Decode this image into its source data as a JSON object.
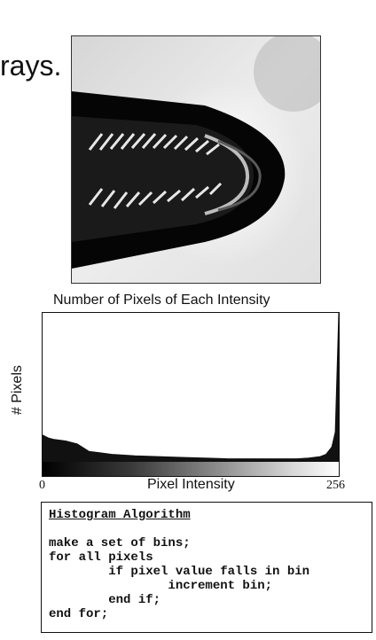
{
  "slide": {
    "title_fragment": "rays."
  },
  "chart_data": {
    "type": "area",
    "title": "Number of Pixels of Each Intensity",
    "xlabel": "Pixel Intensity",
    "ylabel": "# Pixels",
    "x_tick_labels": [
      "0",
      "256"
    ],
    "xlim": [
      0,
      256
    ],
    "ylim": [
      0,
      100
    ],
    "x": [
      0,
      5,
      10,
      20,
      30,
      40,
      50,
      60,
      80,
      100,
      120,
      140,
      160,
      180,
      200,
      220,
      230,
      240,
      245,
      250,
      253,
      256
    ],
    "series": [
      {
        "values": [
          18,
          16,
          15,
          14,
          12,
          7,
          6,
          5,
          4,
          3.5,
          3,
          2.5,
          2,
          2,
          2,
          2,
          2.5,
          3.5,
          5,
          10,
          20,
          100
        ]
      }
    ]
  },
  "algorithm": {
    "title": "Histogram Algorithm",
    "lines": [
      "make a set of bins;",
      "for all pixels",
      "        if pixel value falls in bin",
      "                increment bin;",
      "        end if;",
      "end for;"
    ]
  },
  "colors": {
    "axis": "#111111",
    "histogram_fill": "#111111",
    "background": "#ffffff"
  }
}
